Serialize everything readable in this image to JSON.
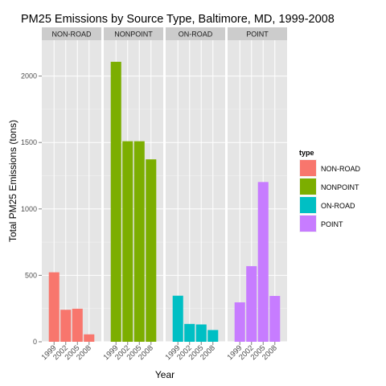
{
  "chart_data": {
    "type": "bar",
    "title": "PM25 Emissions by Source Type, Baltimore, MD, 1999-2008",
    "xlabel": "Year",
    "ylabel": "Total PM25 Emissions (tons)",
    "ylim": [
      0,
      2270
    ],
    "y_ticks": [
      0,
      500,
      1000,
      1500,
      2000
    ],
    "categories": [
      "1999",
      "2002",
      "2005",
      "2008"
    ],
    "grid": true,
    "legend": {
      "title": "type",
      "placement": "right"
    },
    "series": [
      {
        "name": "NON-ROAD",
        "color": "#F8766D",
        "values": [
          522.9,
          240.8,
          248.9,
          55.8
        ]
      },
      {
        "name": "NONPOINT",
        "color": "#7CAE00",
        "values": [
          2107.6,
          1509.5,
          1509.5,
          1373.2
        ]
      },
      {
        "name": "ON-ROAD",
        "color": "#00BFC4",
        "values": [
          346.8,
          134.3,
          130.4,
          88.3
        ]
      },
      {
        "name": "POINT",
        "color": "#C77CFF",
        "values": [
          296.8,
          569.3,
          1202.5,
          345.0
        ]
      }
    ]
  }
}
